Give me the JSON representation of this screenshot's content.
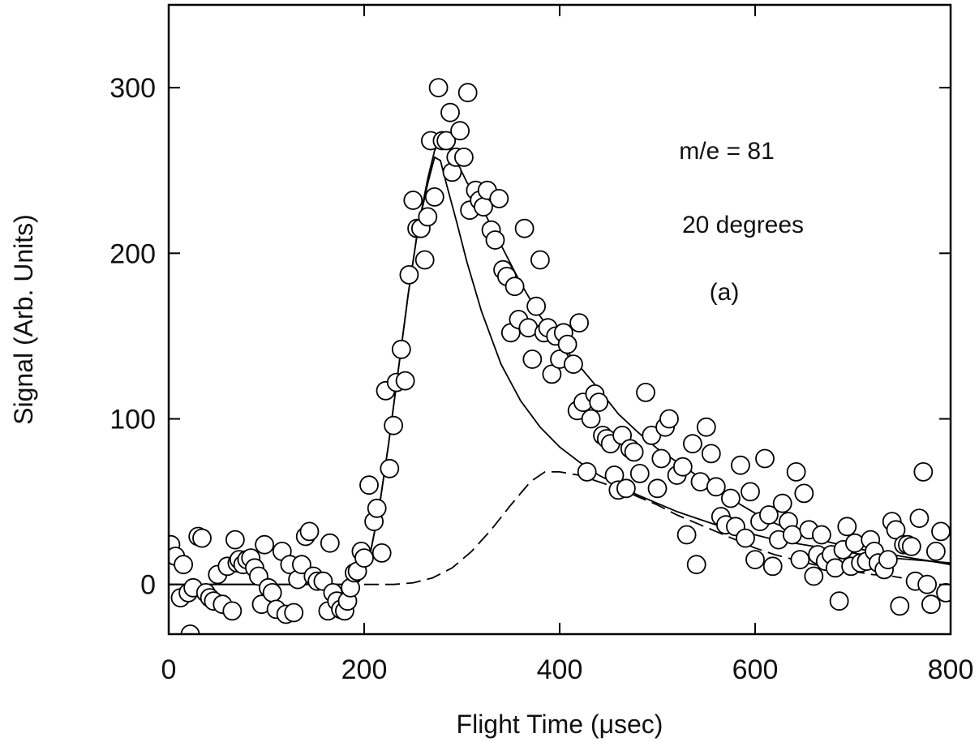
{
  "chart_data": {
    "type": "scatter",
    "title": "",
    "xlabel": "Flight Time (μsec)",
    "ylabel": "Signal (Arb. Units)",
    "xlim": [
      0,
      800
    ],
    "ylim": [
      -30,
      350
    ],
    "xticks": [
      0,
      200,
      400,
      600,
      800
    ],
    "xtick_labels": [
      "0",
      "200",
      "400",
      "600",
      "800"
    ],
    "yticks": [
      0,
      100,
      200,
      300
    ],
    "ytick_labels": [
      "0",
      "100",
      "200",
      "300"
    ],
    "grid": false,
    "legend": "none",
    "annotations": [
      "m/e = 81",
      "20 degrees",
      "(a)"
    ],
    "series": [
      {
        "kind": "points",
        "marker": "open-circle",
        "color": "#000000",
        "points": [
          [
            2,
            24
          ],
          [
            7,
            17
          ],
          [
            12,
            -8
          ],
          [
            15,
            12
          ],
          [
            20,
            -5
          ],
          [
            22,
            -30
          ],
          [
            25,
            -2
          ],
          [
            30,
            29
          ],
          [
            34,
            28
          ],
          [
            38,
            -5
          ],
          [
            42,
            -8
          ],
          [
            46,
            -10
          ],
          [
            50,
            6
          ],
          [
            55,
            -12
          ],
          [
            60,
            11
          ],
          [
            65,
            -16
          ],
          [
            68,
            27
          ],
          [
            70,
            13
          ],
          [
            72,
            15
          ],
          [
            76,
            12
          ],
          [
            80,
            15
          ],
          [
            84,
            16
          ],
          [
            88,
            10
          ],
          [
            92,
            5
          ],
          [
            95,
            -12
          ],
          [
            98,
            24
          ],
          [
            102,
            -2
          ],
          [
            106,
            -5
          ],
          [
            110,
            -15
          ],
          [
            116,
            20
          ],
          [
            120,
            -18
          ],
          [
            124,
            12
          ],
          [
            128,
            -17
          ],
          [
            132,
            3
          ],
          [
            136,
            12
          ],
          [
            140,
            29
          ],
          [
            144,
            32
          ],
          [
            148,
            5
          ],
          [
            152,
            2
          ],
          [
            158,
            2
          ],
          [
            163,
            -16
          ],
          [
            165,
            25
          ],
          [
            168,
            -5
          ],
          [
            172,
            -10
          ],
          [
            176,
            -15
          ],
          [
            180,
            -16
          ],
          [
            183,
            -10
          ],
          [
            186,
            -2
          ],
          [
            190,
            7
          ],
          [
            193,
            8
          ],
          [
            197,
            20
          ],
          [
            200,
            16
          ],
          [
            205,
            60
          ],
          [
            210,
            38
          ],
          [
            213,
            46
          ],
          [
            218,
            19
          ],
          [
            222,
            117
          ],
          [
            226,
            70
          ],
          [
            230,
            96
          ],
          [
            233,
            122
          ],
          [
            238,
            142
          ],
          [
            242,
            123
          ],
          [
            246,
            187
          ],
          [
            250,
            232
          ],
          [
            254,
            215
          ],
          [
            258,
            215
          ],
          [
            262,
            196
          ],
          [
            265,
            222
          ],
          [
            268,
            268
          ],
          [
            272,
            234
          ],
          [
            276,
            300
          ],
          [
            280,
            268
          ],
          [
            284,
            268
          ],
          [
            288,
            285
          ],
          [
            290,
            249
          ],
          [
            294,
            258
          ],
          [
            298,
            274
          ],
          [
            302,
            258
          ],
          [
            306,
            297
          ],
          [
            308,
            226
          ],
          [
            314,
            238
          ],
          [
            318,
            232
          ],
          [
            322,
            228
          ],
          [
            326,
            238
          ],
          [
            330,
            214
          ],
          [
            334,
            208
          ],
          [
            338,
            233
          ],
          [
            342,
            190
          ],
          [
            346,
            186
          ],
          [
            350,
            152
          ],
          [
            354,
            180
          ],
          [
            358,
            160
          ],
          [
            364,
            215
          ],
          [
            368,
            155
          ],
          [
            372,
            136
          ],
          [
            376,
            168
          ],
          [
            380,
            196
          ],
          [
            384,
            152
          ],
          [
            388,
            155
          ],
          [
            392,
            127
          ],
          [
            396,
            150
          ],
          [
            400,
            136
          ],
          [
            404,
            152
          ],
          [
            408,
            145
          ],
          [
            414,
            133
          ],
          [
            418,
            105
          ],
          [
            420,
            158
          ],
          [
            424,
            110
          ],
          [
            428,
            68
          ],
          [
            432,
            100
          ],
          [
            436,
            115
          ],
          [
            440,
            110
          ],
          [
            444,
            90
          ],
          [
            448,
            88
          ],
          [
            452,
            85
          ],
          [
            456,
            66
          ],
          [
            460,
            57
          ],
          [
            464,
            90
          ],
          [
            468,
            58
          ],
          [
            472,
            82
          ],
          [
            476,
            80
          ],
          [
            482,
            67
          ],
          [
            488,
            116
          ],
          [
            494,
            90
          ],
          [
            500,
            58
          ],
          [
            504,
            76
          ],
          [
            508,
            95
          ],
          [
            512,
            100
          ],
          [
            520,
            66
          ],
          [
            526,
            71
          ],
          [
            530,
            30
          ],
          [
            536,
            85
          ],
          [
            540,
            12
          ],
          [
            544,
            62
          ],
          [
            550,
            95
          ],
          [
            555,
            79
          ],
          [
            560,
            59
          ],
          [
            565,
            41
          ],
          [
            570,
            36
          ],
          [
            575,
            52
          ],
          [
            580,
            35
          ],
          [
            585,
            72
          ],
          [
            590,
            28
          ],
          [
            595,
            56
          ],
          [
            600,
            15
          ],
          [
            605,
            38
          ],
          [
            610,
            76
          ],
          [
            614,
            42
          ],
          [
            618,
            11
          ],
          [
            624,
            27
          ],
          [
            628,
            49
          ],
          [
            634,
            38
          ],
          [
            638,
            30
          ],
          [
            642,
            68
          ],
          [
            646,
            15
          ],
          [
            650,
            55
          ],
          [
            655,
            33
          ],
          [
            660,
            5
          ],
          [
            664,
            18
          ],
          [
            668,
            30
          ],
          [
            672,
            14
          ],
          [
            678,
            18
          ],
          [
            682,
            10
          ],
          [
            686,
            -10
          ],
          [
            690,
            21
          ],
          [
            694,
            35
          ],
          [
            698,
            11
          ],
          [
            702,
            25
          ],
          [
            708,
            13
          ],
          [
            714,
            14
          ],
          [
            718,
            27
          ],
          [
            722,
            20
          ],
          [
            726,
            13
          ],
          [
            732,
            9
          ],
          [
            736,
            15
          ],
          [
            740,
            38
          ],
          [
            744,
            33
          ],
          [
            748,
            -13
          ],
          [
            752,
            24
          ],
          [
            756,
            24
          ],
          [
            760,
            23
          ],
          [
            764,
            2
          ],
          [
            768,
            40
          ],
          [
            772,
            68
          ],
          [
            776,
            0
          ],
          [
            780,
            -12
          ],
          [
            785,
            20
          ],
          [
            790,
            32
          ],
          [
            795,
            -5
          ]
        ]
      },
      {
        "kind": "line",
        "style": "solid",
        "color": "#000000",
        "points": [
          [
            0,
            0
          ],
          [
            150,
            0
          ],
          [
            180,
            0
          ],
          [
            195,
            2
          ],
          [
            205,
            15
          ],
          [
            215,
            45
          ],
          [
            225,
            85
          ],
          [
            235,
            130
          ],
          [
            245,
            175
          ],
          [
            255,
            215
          ],
          [
            265,
            245
          ],
          [
            272,
            262
          ],
          [
            278,
            268
          ],
          [
            285,
            265
          ],
          [
            295,
            255
          ],
          [
            305,
            243
          ],
          [
            320,
            228
          ],
          [
            340,
            205
          ],
          [
            360,
            182
          ],
          [
            380,
            162
          ],
          [
            400,
            146
          ],
          [
            420,
            132
          ],
          [
            440,
            118
          ],
          [
            460,
            103
          ],
          [
            480,
            92
          ],
          [
            500,
            82
          ],
          [
            520,
            74
          ],
          [
            540,
            66
          ],
          [
            560,
            58
          ],
          [
            580,
            50
          ],
          [
            600,
            43
          ],
          [
            620,
            37
          ],
          [
            640,
            32
          ],
          [
            660,
            28
          ],
          [
            680,
            25
          ],
          [
            700,
            22
          ],
          [
            720,
            20
          ],
          [
            740,
            18
          ],
          [
            760,
            16
          ],
          [
            780,
            14
          ],
          [
            800,
            12
          ]
        ]
      },
      {
        "kind": "line",
        "style": "solid",
        "color": "#000000",
        "points": [
          [
            0,
            0
          ],
          [
            150,
            0
          ],
          [
            180,
            0
          ],
          [
            195,
            2
          ],
          [
            205,
            15
          ],
          [
            215,
            45
          ],
          [
            225,
            85
          ],
          [
            235,
            130
          ],
          [
            245,
            175
          ],
          [
            255,
            215
          ],
          [
            265,
            242
          ],
          [
            272,
            258
          ],
          [
            278,
            256
          ],
          [
            285,
            240
          ],
          [
            295,
            218
          ],
          [
            305,
            195
          ],
          [
            320,
            165
          ],
          [
            340,
            133
          ],
          [
            360,
            111
          ],
          [
            380,
            95
          ],
          [
            400,
            83
          ],
          [
            420,
            74
          ],
          [
            440,
            66
          ],
          [
            460,
            60
          ],
          [
            480,
            54
          ],
          [
            500,
            49
          ],
          [
            520,
            44
          ],
          [
            540,
            40
          ],
          [
            560,
            36
          ],
          [
            580,
            33
          ],
          [
            600,
            30
          ],
          [
            620,
            27
          ],
          [
            640,
            25
          ],
          [
            660,
            23
          ],
          [
            680,
            21
          ],
          [
            700,
            19
          ],
          [
            720,
            17
          ],
          [
            740,
            16
          ],
          [
            760,
            15
          ],
          [
            780,
            14
          ],
          [
            800,
            13
          ]
        ]
      },
      {
        "kind": "line",
        "style": "dashed",
        "color": "#000000",
        "points": [
          [
            200,
            0
          ],
          [
            230,
            0
          ],
          [
            250,
            1
          ],
          [
            270,
            4
          ],
          [
            290,
            10
          ],
          [
            310,
            20
          ],
          [
            330,
            33
          ],
          [
            350,
            48
          ],
          [
            370,
            62
          ],
          [
            385,
            68
          ],
          [
            400,
            68
          ],
          [
            420,
            66
          ],
          [
            440,
            62
          ],
          [
            460,
            58
          ],
          [
            480,
            53
          ],
          [
            500,
            48
          ],
          [
            520,
            42
          ],
          [
            540,
            37
          ],
          [
            560,
            32
          ],
          [
            580,
            27
          ],
          [
            600,
            22
          ],
          [
            620,
            18
          ],
          [
            640,
            15
          ],
          [
            660,
            12
          ],
          [
            680,
            10
          ],
          [
            700,
            8
          ],
          [
            720,
            6
          ],
          [
            740,
            5
          ],
          [
            750,
            4
          ]
        ]
      }
    ]
  }
}
